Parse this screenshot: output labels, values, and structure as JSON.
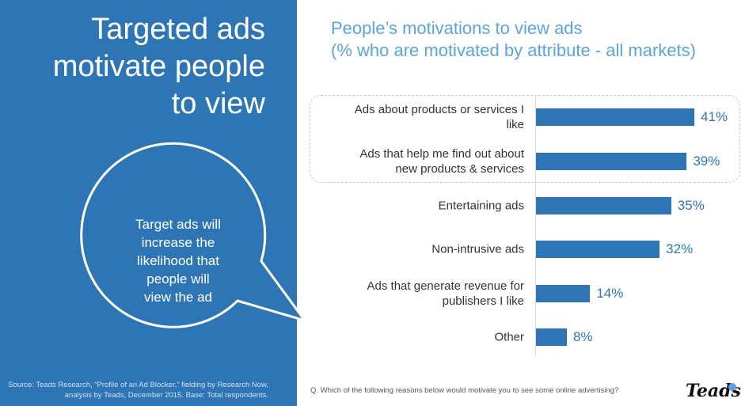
{
  "headline": [
    "Targeted ads",
    "motivate people",
    "to view"
  ],
  "bubble": [
    "Target ads will",
    "increase the",
    "likelihood that",
    "people will",
    "view the ad"
  ],
  "source": [
    "Source: Teads Research, “Profile of an Ad Blocker,” fielding by Research Now,",
    "analysis by Teads, December 2015. Base: Total respondents."
  ],
  "question": "Q. Which of the following reasons below would motivate you to see some online advertising?",
  "logo": "Teads",
  "chart_data": {
    "type": "bar",
    "orientation": "horizontal",
    "title": [
      "People’s motivations to view ads",
      "(% who are motivated by attribute - all markets)"
    ],
    "categories": [
      [
        "Ads about products or services I",
        "like"
      ],
      [
        "Ads that help me find out about",
        "new products & services"
      ],
      [
        "Entertaining ads"
      ],
      [
        "Non-intrusive ads"
      ],
      [
        "Ads that generate revenue for",
        "publishers I like"
      ],
      [
        "Other"
      ]
    ],
    "values": [
      41,
      39,
      35,
      32,
      14,
      8
    ],
    "value_labels": [
      "41%",
      "39%",
      "35%",
      "32%",
      "14%",
      "8%"
    ],
    "highlighted": [
      0,
      1
    ],
    "color": "#2e75b6",
    "xlim": [
      0,
      50
    ]
  }
}
